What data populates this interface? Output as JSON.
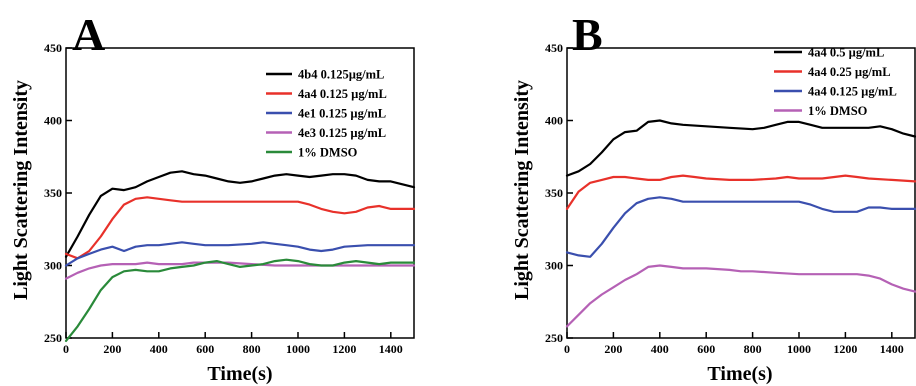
{
  "chart_data": [
    {
      "type": "line",
      "panel_label": "A",
      "xlabel": "Time(s)",
      "ylabel": "Light Scattering Intensity",
      "xlim": [
        0,
        1500
      ],
      "ylim": [
        250,
        450
      ],
      "xticks": [
        "0",
        "200",
        "400",
        "600",
        "800",
        "1000",
        "1200",
        "1400"
      ],
      "yticks": [
        "250",
        "300",
        "350",
        "400",
        "450"
      ],
      "legend_position": "right",
      "grid": false,
      "series": [
        {
          "name": "4b4 0.125µg/mL",
          "color": "#000000",
          "points": [
            [
              0,
              306
            ],
            [
              50,
              320
            ],
            [
              100,
              335
            ],
            [
              150,
              348
            ],
            [
              200,
              353
            ],
            [
              250,
              352
            ],
            [
              300,
              354
            ],
            [
              350,
              358
            ],
            [
              400,
              361
            ],
            [
              450,
              364
            ],
            [
              500,
              365
            ],
            [
              550,
              363
            ],
            [
              600,
              362
            ],
            [
              650,
              360
            ],
            [
              700,
              358
            ],
            [
              750,
              357
            ],
            [
              800,
              358
            ],
            [
              850,
              360
            ],
            [
              900,
              362
            ],
            [
              950,
              363
            ],
            [
              1000,
              362
            ],
            [
              1050,
              361
            ],
            [
              1100,
              362
            ],
            [
              1150,
              363
            ],
            [
              1200,
              363
            ],
            [
              1250,
              362
            ],
            [
              1300,
              359
            ],
            [
              1350,
              358
            ],
            [
              1400,
              358
            ],
            [
              1450,
              356
            ],
            [
              1500,
              354
            ]
          ]
        },
        {
          "name": "4a4 0.125 µg/mL",
          "color": "#e8312a",
          "points": [
            [
              0,
              308
            ],
            [
              50,
              305
            ],
            [
              100,
              310
            ],
            [
              150,
              320
            ],
            [
              200,
              332
            ],
            [
              250,
              342
            ],
            [
              300,
              346
            ],
            [
              350,
              347
            ],
            [
              400,
              346
            ],
            [
              450,
              345
            ],
            [
              500,
              344
            ],
            [
              600,
              344
            ],
            [
              700,
              344
            ],
            [
              800,
              344
            ],
            [
              900,
              344
            ],
            [
              1000,
              344
            ],
            [
              1050,
              342
            ],
            [
              1100,
              339
            ],
            [
              1150,
              337
            ],
            [
              1200,
              336
            ],
            [
              1250,
              337
            ],
            [
              1300,
              340
            ],
            [
              1350,
              341
            ],
            [
              1400,
              339
            ],
            [
              1450,
              339
            ],
            [
              1500,
              339
            ]
          ]
        },
        {
          "name": "4e1 0.125 µg/mL",
          "color": "#3a4fae",
          "points": [
            [
              0,
              300
            ],
            [
              50,
              305
            ],
            [
              100,
              308
            ],
            [
              150,
              311
            ],
            [
              200,
              313
            ],
            [
              250,
              310
            ],
            [
              300,
              313
            ],
            [
              350,
              314
            ],
            [
              400,
              314
            ],
            [
              450,
              315
            ],
            [
              500,
              316
            ],
            [
              550,
              315
            ],
            [
              600,
              314
            ],
            [
              700,
              314
            ],
            [
              800,
              315
            ],
            [
              850,
              316
            ],
            [
              900,
              315
            ],
            [
              950,
              314
            ],
            [
              1000,
              313
            ],
            [
              1050,
              311
            ],
            [
              1100,
              310
            ],
            [
              1150,
              311
            ],
            [
              1200,
              313
            ],
            [
              1300,
              314
            ],
            [
              1400,
              314
            ],
            [
              1500,
              314
            ]
          ]
        },
        {
          "name": "4e3 0.125 µg/mL",
          "color": "#b561b5",
          "points": [
            [
              0,
              291
            ],
            [
              50,
              295
            ],
            [
              100,
              298
            ],
            [
              150,
              300
            ],
            [
              200,
              301
            ],
            [
              250,
              301
            ],
            [
              300,
              301
            ],
            [
              350,
              302
            ],
            [
              400,
              301
            ],
            [
              450,
              301
            ],
            [
              500,
              301
            ],
            [
              550,
              302
            ],
            [
              600,
              302
            ],
            [
              700,
              302
            ],
            [
              800,
              301
            ],
            [
              900,
              300
            ],
            [
              1000,
              300
            ],
            [
              1100,
              300
            ],
            [
              1200,
              300
            ],
            [
              1300,
              300
            ],
            [
              1400,
              300
            ],
            [
              1500,
              300
            ]
          ]
        },
        {
          "name": "1% DMSO",
          "color": "#2a8a3a",
          "points": [
            [
              0,
              248
            ],
            [
              50,
              258
            ],
            [
              100,
              270
            ],
            [
              150,
              283
            ],
            [
              200,
              292
            ],
            [
              250,
              296
            ],
            [
              300,
              297
            ],
            [
              350,
              296
            ],
            [
              400,
              296
            ],
            [
              450,
              298
            ],
            [
              500,
              299
            ],
            [
              550,
              300
            ],
            [
              600,
              302
            ],
            [
              650,
              303
            ],
            [
              700,
              301
            ],
            [
              750,
              299
            ],
            [
              800,
              300
            ],
            [
              850,
              301
            ],
            [
              900,
              303
            ],
            [
              950,
              304
            ],
            [
              1000,
              303
            ],
            [
              1050,
              301
            ],
            [
              1100,
              300
            ],
            [
              1150,
              300
            ],
            [
              1200,
              302
            ],
            [
              1250,
              303
            ],
            [
              1300,
              302
            ],
            [
              1350,
              301
            ],
            [
              1400,
              302
            ],
            [
              1500,
              302
            ]
          ]
        }
      ]
    },
    {
      "type": "line",
      "panel_label": "B",
      "xlabel": "Time(s)",
      "ylabel": "Light Scattering Intensity",
      "xlim": [
        0,
        1500
      ],
      "ylim": [
        250,
        450
      ],
      "xticks": [
        "0",
        "200",
        "400",
        "600",
        "800",
        "1000",
        "1200",
        "1400"
      ],
      "yticks": [
        "250",
        "300",
        "350",
        "400",
        "450"
      ],
      "legend_position": "top-right",
      "grid": false,
      "series": [
        {
          "name": "4a4 0.5 µg/mL",
          "color": "#000000",
          "points": [
            [
              0,
              362
            ],
            [
              50,
              365
            ],
            [
              100,
              370
            ],
            [
              150,
              378
            ],
            [
              200,
              387
            ],
            [
              250,
              392
            ],
            [
              300,
              393
            ],
            [
              350,
              399
            ],
            [
              400,
              400
            ],
            [
              450,
              398
            ],
            [
              500,
              397
            ],
            [
              600,
              396
            ],
            [
              700,
              395
            ],
            [
              800,
              394
            ],
            [
              850,
              395
            ],
            [
              900,
              397
            ],
            [
              950,
              399
            ],
            [
              1000,
              399
            ],
            [
              1050,
              397
            ],
            [
              1100,
              395
            ],
            [
              1200,
              395
            ],
            [
              1300,
              395
            ],
            [
              1350,
              396
            ],
            [
              1400,
              394
            ],
            [
              1450,
              391
            ],
            [
              1500,
              389
            ]
          ]
        },
        {
          "name": "4a4 0.25 µg/mL",
          "color": "#e8312a",
          "points": [
            [
              0,
              339
            ],
            [
              50,
              351
            ],
            [
              100,
              357
            ],
            [
              150,
              359
            ],
            [
              200,
              361
            ],
            [
              250,
              361
            ],
            [
              300,
              360
            ],
            [
              350,
              359
            ],
            [
              400,
              359
            ],
            [
              450,
              361
            ],
            [
              500,
              362
            ],
            [
              550,
              361
            ],
            [
              600,
              360
            ],
            [
              700,
              359
            ],
            [
              800,
              359
            ],
            [
              900,
              360
            ],
            [
              950,
              361
            ],
            [
              1000,
              360
            ],
            [
              1100,
              360
            ],
            [
              1200,
              362
            ],
            [
              1250,
              361
            ],
            [
              1300,
              360
            ],
            [
              1400,
              359
            ],
            [
              1500,
              358
            ]
          ]
        },
        {
          "name": "4a4 0.125 µg/mL",
          "color": "#3a4fae",
          "points": [
            [
              0,
              309
            ],
            [
              50,
              307
            ],
            [
              100,
              306
            ],
            [
              150,
              315
            ],
            [
              200,
              326
            ],
            [
              250,
              336
            ],
            [
              300,
              343
            ],
            [
              350,
              346
            ],
            [
              400,
              347
            ],
            [
              450,
              346
            ],
            [
              500,
              344
            ],
            [
              600,
              344
            ],
            [
              700,
              344
            ],
            [
              800,
              344
            ],
            [
              900,
              344
            ],
            [
              1000,
              344
            ],
            [
              1050,
              342
            ],
            [
              1100,
              339
            ],
            [
              1150,
              337
            ],
            [
              1200,
              337
            ],
            [
              1250,
              337
            ],
            [
              1300,
              340
            ],
            [
              1350,
              340
            ],
            [
              1400,
              339
            ],
            [
              1450,
              339
            ],
            [
              1500,
              339
            ]
          ]
        },
        {
          "name": "1% DMSO",
          "color": "#b561b5",
          "points": [
            [
              0,
              258
            ],
            [
              50,
              266
            ],
            [
              100,
              274
            ],
            [
              150,
              280
            ],
            [
              200,
              285
            ],
            [
              250,
              290
            ],
            [
              300,
              294
            ],
            [
              350,
              299
            ],
            [
              400,
              300
            ],
            [
              450,
              299
            ],
            [
              500,
              298
            ],
            [
              600,
              298
            ],
            [
              700,
              297
            ],
            [
              750,
              296
            ],
            [
              800,
              296
            ],
            [
              900,
              295
            ],
            [
              1000,
              294
            ],
            [
              1100,
              294
            ],
            [
              1200,
              294
            ],
            [
              1250,
              294
            ],
            [
              1300,
              293
            ],
            [
              1350,
              291
            ],
            [
              1400,
              287
            ],
            [
              1450,
              284
            ],
            [
              1500,
              282
            ]
          ]
        }
      ]
    }
  ]
}
